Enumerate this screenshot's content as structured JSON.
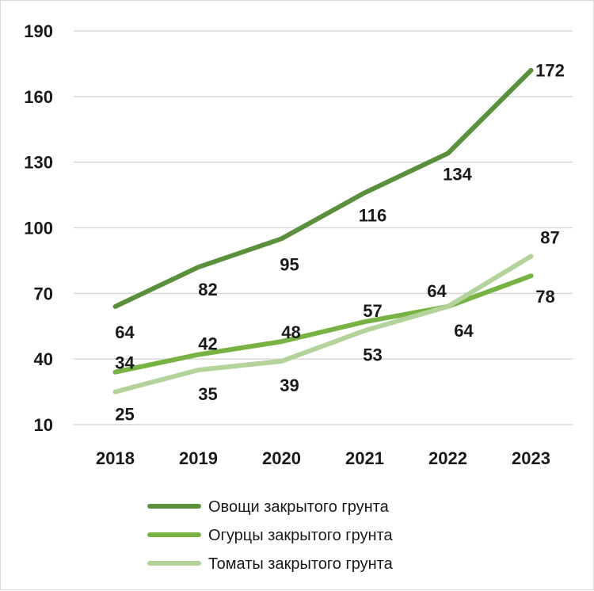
{
  "chart_data": {
    "type": "line",
    "categories": [
      "2018",
      "2019",
      "2020",
      "2021",
      "2022",
      "2023"
    ],
    "y_ticks": [
      "10",
      "40",
      "70",
      "100",
      "130",
      "160",
      "190"
    ],
    "ylim": [
      10,
      190
    ],
    "grid": true,
    "legend_position": "bottom",
    "series": [
      {
        "name": "Овощи закрытого грунта",
        "color": "#5a8f3c",
        "values": [
          64,
          82,
          95,
          116,
          134,
          172
        ],
        "labels": [
          "64",
          "82",
          "95",
          "116",
          "134",
          "172"
        ]
      },
      {
        "name": "Огурцы закрытого грунта",
        "color": "#78b243",
        "values": [
          34,
          42,
          48,
          57,
          64,
          78
        ],
        "labels": [
          "34",
          "42",
          "48",
          "57",
          "64",
          "78"
        ]
      },
      {
        "name": "Томаты закрытого грунта",
        "color": "#b3d39b",
        "values": [
          25,
          35,
          39,
          53,
          64,
          87
        ],
        "labels": [
          "25",
          "35",
          "39",
          "53",
          "64",
          "87"
        ]
      }
    ]
  }
}
